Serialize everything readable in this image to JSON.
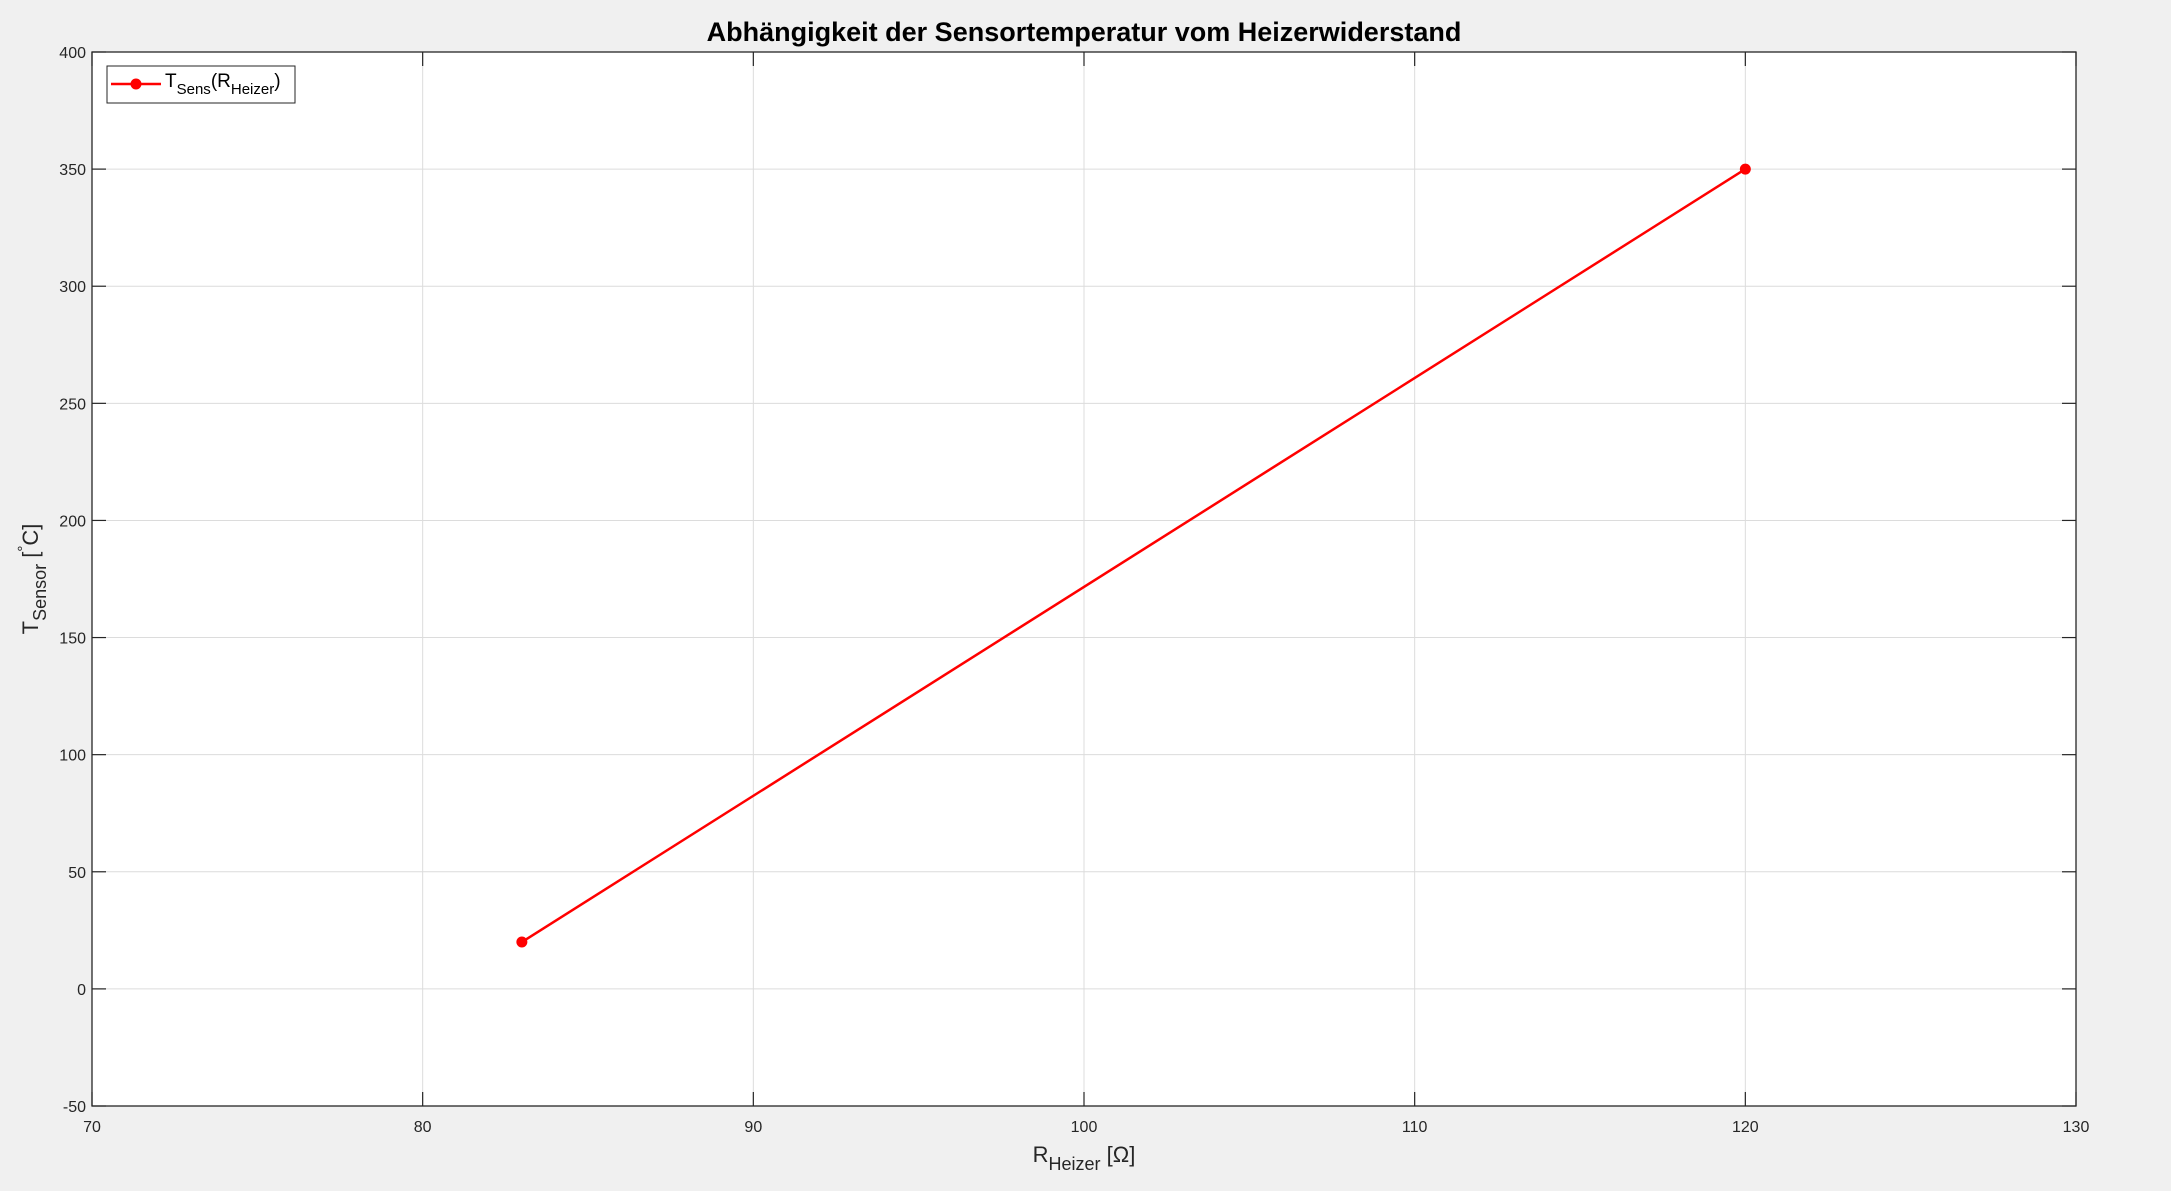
{
  "chart_data": {
    "type": "line",
    "title": "Abhängigkeit der Sensortemperatur vom Heizerwiderstand",
    "xlabel": {
      "main": "R",
      "sub": "Heizer",
      "suffix": " [Ω]"
    },
    "ylabel": {
      "main": "T",
      "sub": "Sensor",
      "suffix": " [",
      "degree": "°",
      "unit": "C]"
    },
    "xlim": [
      70,
      130
    ],
    "ylim": [
      -50,
      400
    ],
    "xticks": [
      70,
      80,
      90,
      100,
      110,
      120,
      130
    ],
    "yticks": [
      -50,
      0,
      50,
      100,
      150,
      200,
      250,
      300,
      350,
      400
    ],
    "grid": true,
    "legend_location": "top-left",
    "series": [
      {
        "name": {
          "main": "T",
          "sub1": "Sens",
          "mid": "(R",
          "sub2": "Heizer",
          "end": ")"
        },
        "color": "#ff0000",
        "marker": "filled-circle",
        "x": [
          83,
          120
        ],
        "y": [
          20,
          350
        ]
      }
    ]
  },
  "colors": {
    "figure_background": "#f0f0f0",
    "axes_background": "#ffffff",
    "series": "#ff0000"
  }
}
